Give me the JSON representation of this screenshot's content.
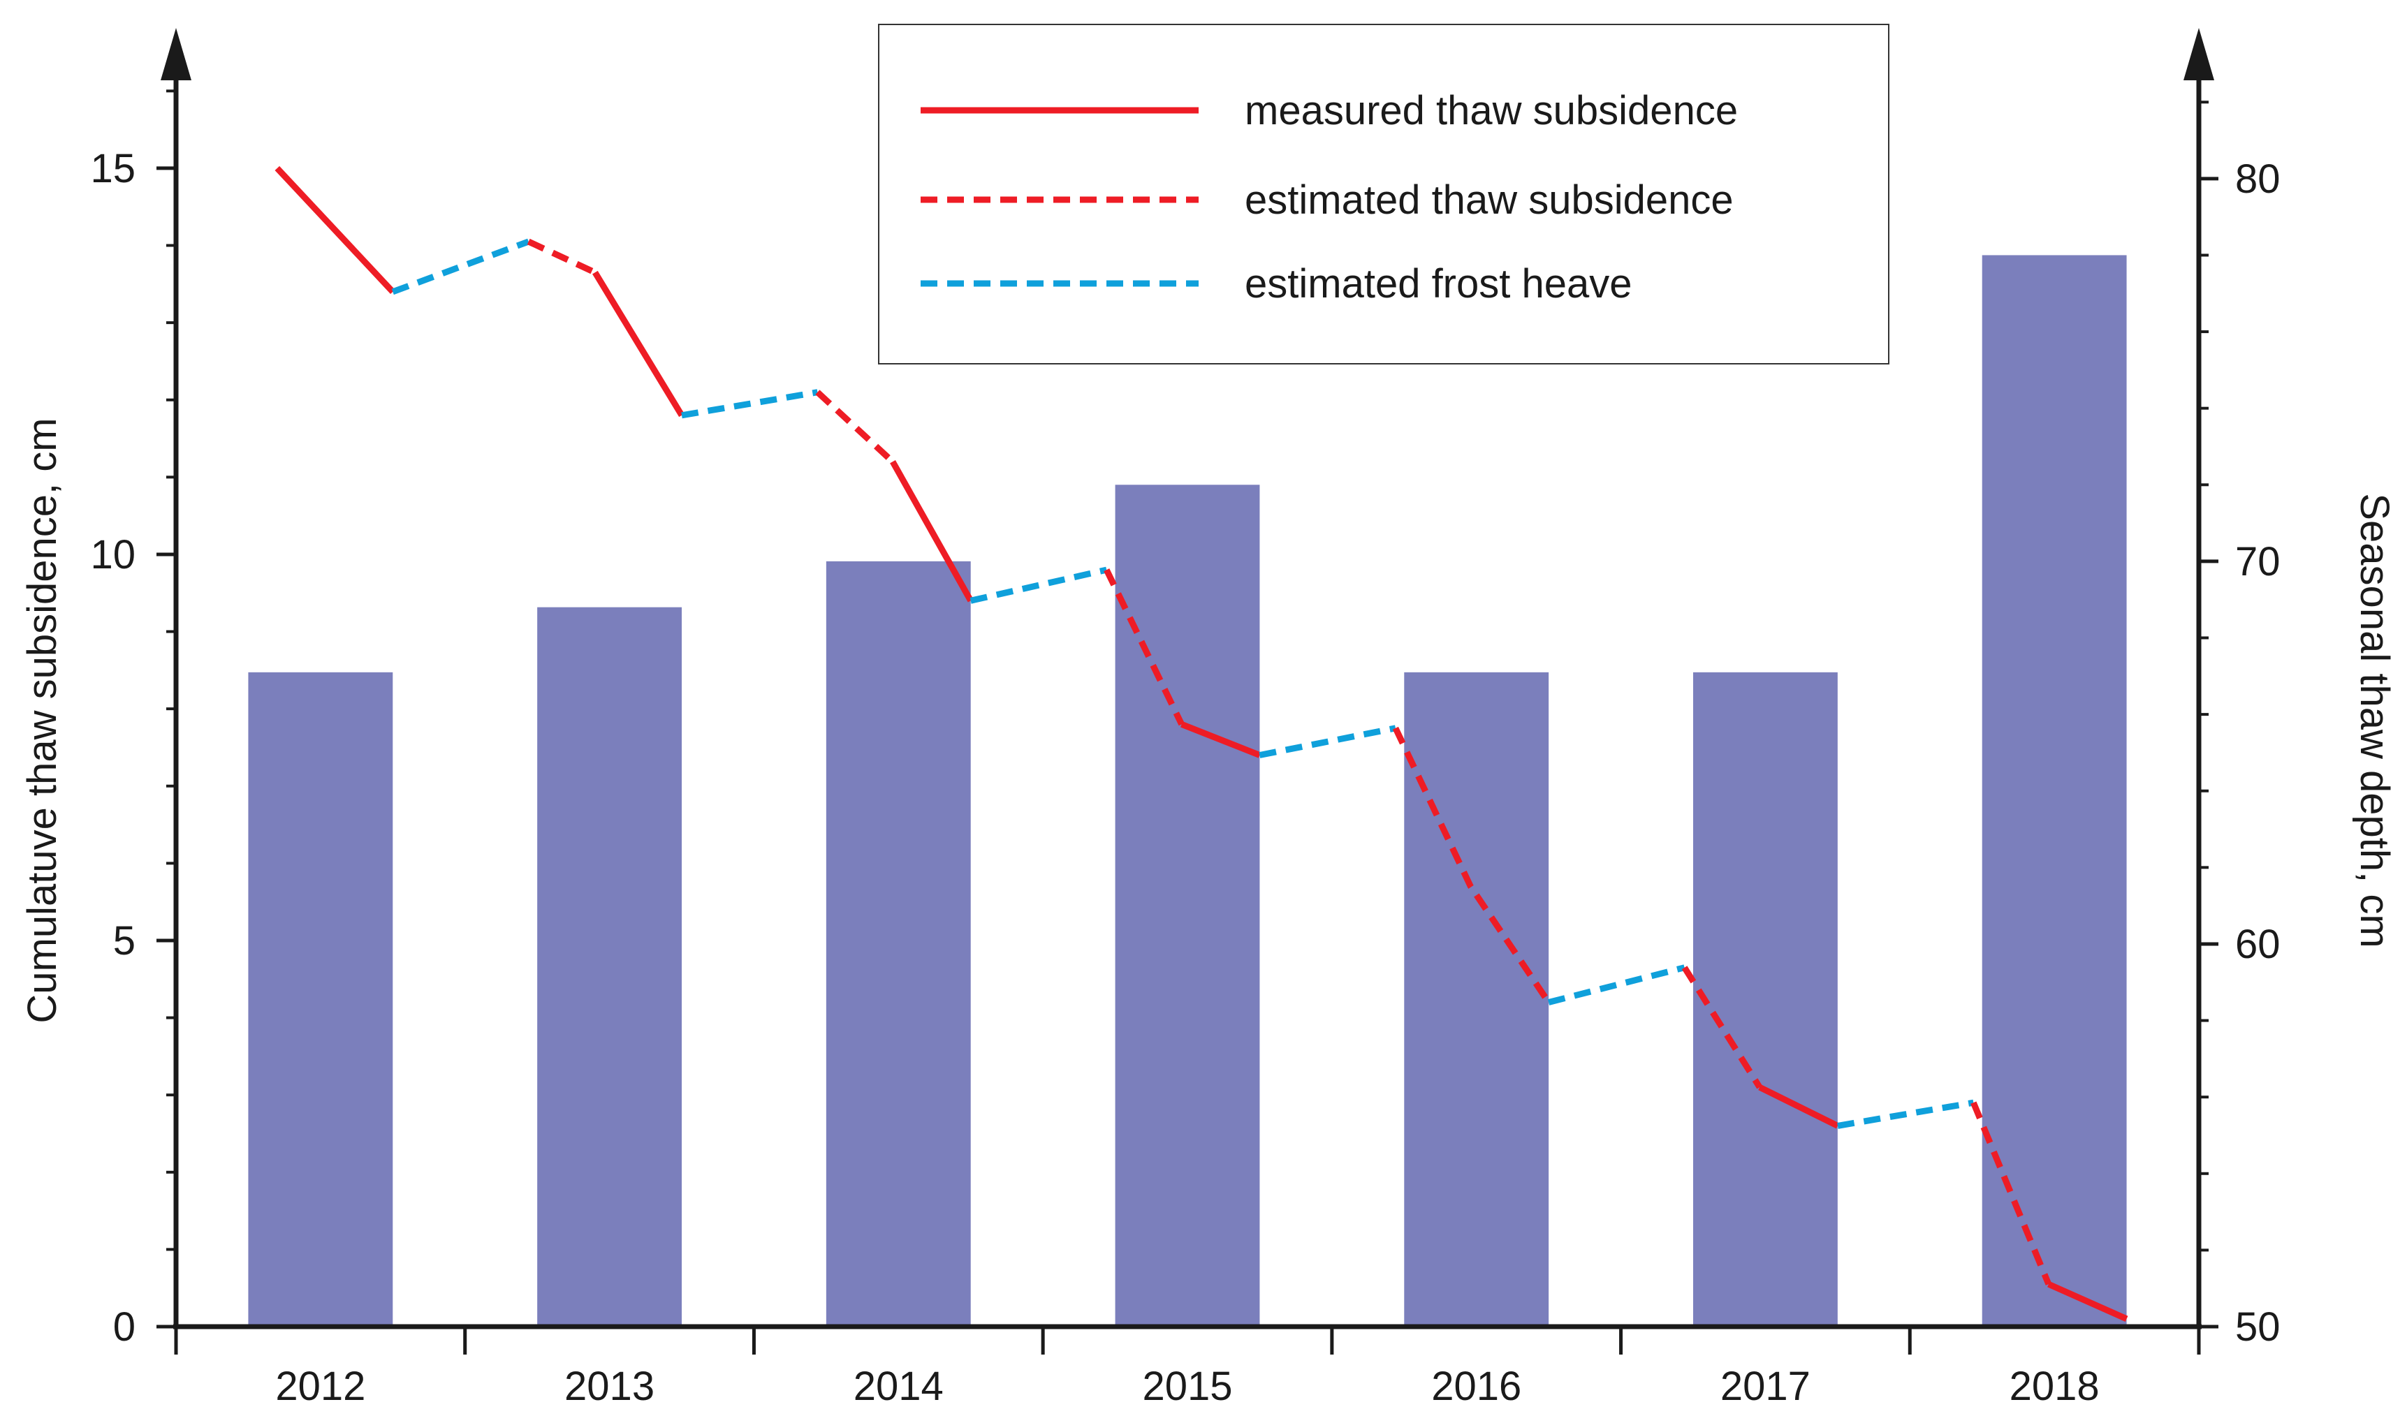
{
  "chart_data": {
    "type": "bar+line",
    "title": "",
    "x": {
      "categories": [
        "2012",
        "2013",
        "2014",
        "2015",
        "2016",
        "2017",
        "2018"
      ],
      "label": ""
    },
    "y_left": {
      "label": "Cumulatuve thaw subsidence, cm",
      "range": [
        0,
        16.5
      ],
      "ticks": [
        0,
        5,
        10,
        15
      ],
      "tick_labels": [
        "0",
        "5",
        "10",
        "15"
      ],
      "minor_step": 1
    },
    "y_right": {
      "label": "Seasonal thaw depth, cm",
      "range": [
        50,
        83.3
      ],
      "ticks": [
        50,
        60,
        70,
        80
      ],
      "tick_labels": [
        "50",
        "60",
        "70",
        "80"
      ],
      "minor_step": 2
    },
    "bars": {
      "name": "Seasonal thaw depth",
      "axis": "right",
      "color": "#7b7fbc",
      "values": [
        67.1,
        68.8,
        70.0,
        72.0,
        67.1,
        67.1,
        78.0
      ]
    },
    "line": {
      "axis": "left",
      "note": "x in year-units, year i spans [i-0.5, i+0.5] around category centre",
      "points": [
        {
          "x": -0.15,
          "y": 15.0
        },
        {
          "x": 0.25,
          "y": 13.4
        },
        {
          "x": 0.72,
          "y": 14.05
        },
        {
          "x": 0.95,
          "y": 13.65
        },
        {
          "x": 1.25,
          "y": 11.8
        },
        {
          "x": 1.72,
          "y": 12.1
        },
        {
          "x": 1.98,
          "y": 11.2
        },
        {
          "x": 2.25,
          "y": 9.4
        },
        {
          "x": 2.72,
          "y": 9.8
        },
        {
          "x": 2.98,
          "y": 7.8
        },
        {
          "x": 3.25,
          "y": 7.4
        },
        {
          "x": 3.72,
          "y": 7.75
        },
        {
          "x": 3.98,
          "y": 5.7
        },
        {
          "x": 4.25,
          "y": 4.2
        },
        {
          "x": 4.72,
          "y": 4.65
        },
        {
          "x": 4.98,
          "y": 3.1
        },
        {
          "x": 5.25,
          "y": 2.6
        },
        {
          "x": 5.72,
          "y": 2.9
        },
        {
          "x": 5.98,
          "y": 0.55
        },
        {
          "x": 6.25,
          "y": 0.1
        }
      ],
      "segments": [
        {
          "from": 0,
          "to": 1,
          "style": "measured"
        },
        {
          "from": 1,
          "to": 2,
          "style": "frost"
        },
        {
          "from": 2,
          "to": 3,
          "style": "estimated"
        },
        {
          "from": 3,
          "to": 4,
          "style": "measured"
        },
        {
          "from": 4,
          "to": 5,
          "style": "frost"
        },
        {
          "from": 5,
          "to": 6,
          "style": "estimated"
        },
        {
          "from": 6,
          "to": 7,
          "style": "measured"
        },
        {
          "from": 7,
          "to": 8,
          "style": "frost"
        },
        {
          "from": 8,
          "to": 9,
          "style": "estimated"
        },
        {
          "from": 9,
          "to": 10,
          "style": "measured"
        },
        {
          "from": 10,
          "to": 11,
          "style": "frost"
        },
        {
          "from": 11,
          "to": 13,
          "style": "estimated"
        },
        {
          "from": 13,
          "to": 14,
          "style": "frost"
        },
        {
          "from": 14,
          "to": 15,
          "style": "estimated"
        },
        {
          "from": 15,
          "to": 16,
          "style": "measured"
        },
        {
          "from": 16,
          "to": 17,
          "style": "frost"
        },
        {
          "from": 17,
          "to": 18,
          "style": "estimated"
        },
        {
          "from": 18,
          "to": 19,
          "style": "measured"
        }
      ]
    },
    "legend": {
      "position": "top-center",
      "entries": [
        {
          "key": "measured",
          "label": "measured thaw subsidence",
          "color": "#ee1c25",
          "dash": "solid"
        },
        {
          "key": "estimated",
          "label": "estimated thaw subsidence",
          "color": "#ee1c25",
          "dash": "dashed"
        },
        {
          "key": "frost",
          "label": "estimated frost heave",
          "color": "#0fa0db",
          "dash": "dashed"
        }
      ]
    }
  }
}
